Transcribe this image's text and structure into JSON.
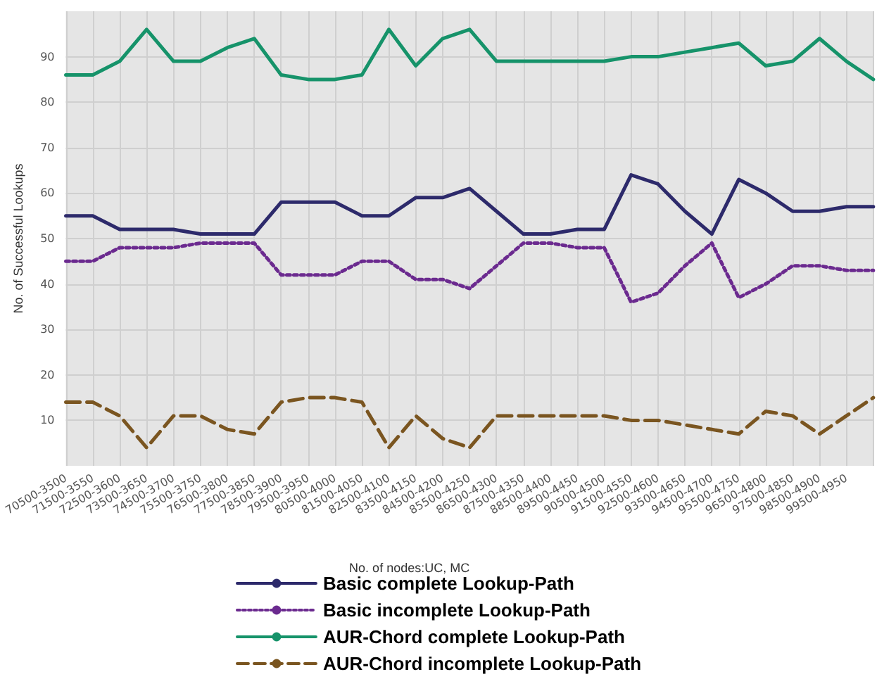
{
  "chart_data": {
    "type": "line",
    "xlabel": "No. of nodes:UC, MC",
    "ylabel": "No. of Successful Lookups",
    "categories": [
      "70500-3500",
      "71500-3550",
      "72500-3600",
      "73500-3650",
      "74500-3700",
      "75500-3750",
      "76500-3800",
      "77500-3850",
      "78500-3900",
      "79500-3950",
      "80500-4000",
      "81500-4050",
      "82500-4100",
      "83500-4150",
      "84500-4200",
      "85500-4250",
      "86500-4300",
      "87500-4350",
      "88500-4400",
      "89500-4450",
      "90500-4500",
      "91500-4550",
      "92500-4600",
      "93500-4650",
      "94500-4700",
      "95500-4750",
      "96500-4800",
      "97500-4850",
      "98500-4900",
      "99500-4950",
      null
    ],
    "series": [
      {
        "name": "Basic complete Lookup-Path",
        "color": "#2d2a6b",
        "line_style": "solid",
        "values": [
          55,
          55,
          52,
          52,
          52,
          51,
          51,
          51,
          58,
          58,
          58,
          55,
          55,
          59,
          59,
          61,
          56,
          51,
          51,
          52,
          52,
          64,
          62,
          56,
          51,
          63,
          60,
          56,
          56,
          57,
          57
        ]
      },
      {
        "name": "Basic incomplete Lookup-Path",
        "color": "#6b2a8f",
        "line_style": "dotted",
        "values": [
          45,
          45,
          48,
          48,
          48,
          49,
          49,
          49,
          42,
          42,
          42,
          45,
          45,
          41,
          41,
          39,
          44,
          49,
          49,
          48,
          48,
          36,
          38,
          44,
          49,
          37,
          40,
          44,
          44,
          43,
          43
        ]
      },
      {
        "name": "AUR-Chord complete Lookup-Path",
        "color": "#16936a",
        "line_style": "solid",
        "values": [
          86,
          86,
          89,
          96,
          89,
          89,
          92,
          94,
          86,
          85,
          85,
          86,
          96,
          88,
          94,
          96,
          89,
          89,
          89,
          89,
          89,
          90,
          90,
          91,
          92,
          93,
          88,
          89,
          94,
          89,
          85
        ]
      },
      {
        "name": "AUR-Chord incomplete Lookup-Path",
        "color": "#7a5520",
        "line_style": "dashed",
        "values": [
          14,
          14,
          11,
          4,
          11,
          11,
          8,
          7,
          14,
          15,
          15,
          14,
          4,
          11,
          6,
          4,
          11,
          11,
          11,
          11,
          11,
          10,
          10,
          9,
          8,
          7,
          12,
          11,
          7,
          11,
          15
        ]
      }
    ],
    "ylim": [
      0,
      100
    ],
    "yticks": [
      10,
      20,
      30,
      40,
      50,
      60,
      70,
      80,
      90
    ],
    "grid": true,
    "legend": "bottom",
    "marker": "none"
  }
}
